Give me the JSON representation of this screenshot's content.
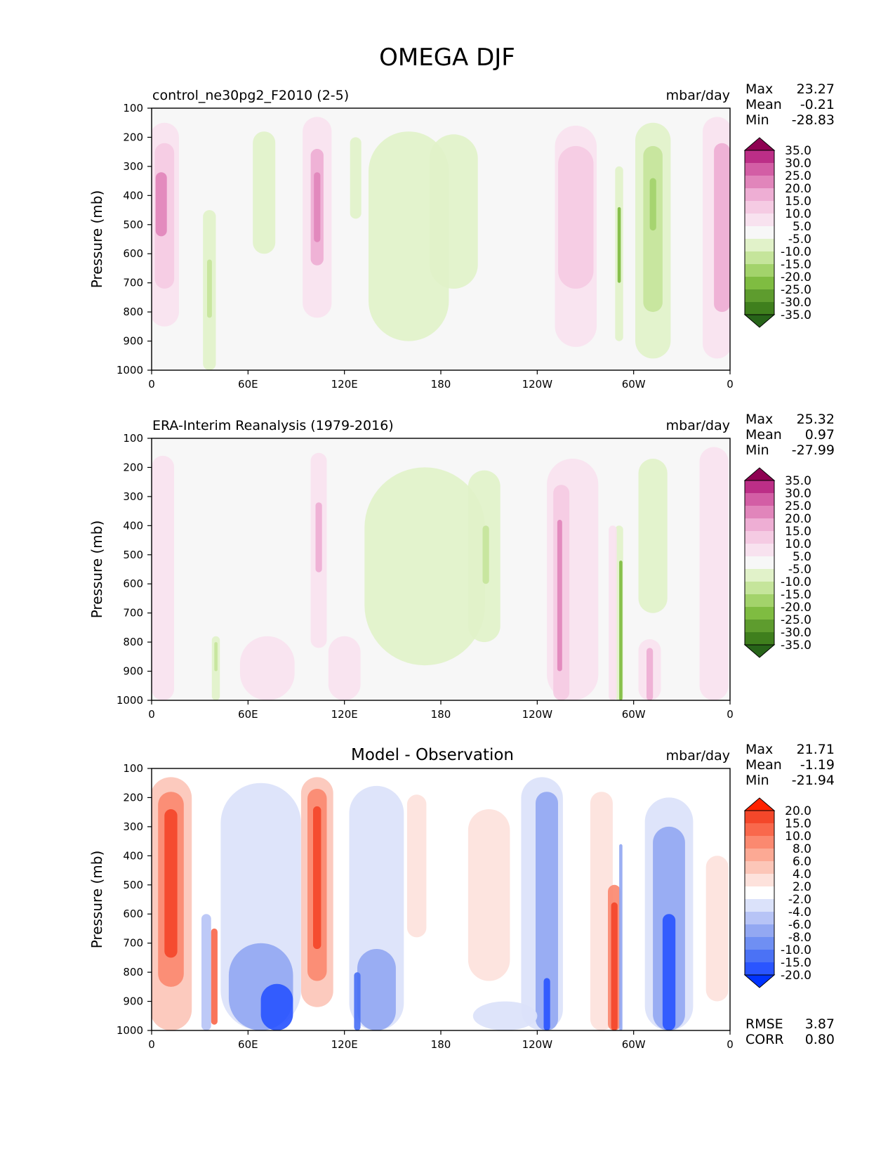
{
  "figure": {
    "title": "OMEGA DJF"
  },
  "colorbars": {
    "field": {
      "colors": [
        "#276419",
        "#3f7f1d",
        "#5e9c2e",
        "#7fbc41",
        "#a3d36b",
        "#c5e59b",
        "#e1f2c9",
        "#f7f7f7",
        "#f8e2ef",
        "#f5cbe3",
        "#eeaed4",
        "#e185bb",
        "#d35ea5",
        "#bc2e87",
        "#8e0152"
      ],
      "labels": [
        "35.0",
        "30.0",
        "25.0",
        "20.0",
        "15.0",
        "10.0",
        "5.0",
        "-5.0",
        "-10.0",
        "-15.0",
        "-20.0",
        "-25.0",
        "-30.0",
        "-35.0"
      ]
    },
    "diff": {
      "colors": [
        "#0033ff",
        "#2a55ff",
        "#4b72f5",
        "#6f8ff3",
        "#93a8f2",
        "#b7c4f6",
        "#dbe2fa",
        "#ffffff",
        "#fde2dc",
        "#fcc6b8",
        "#fca994",
        "#fb8970",
        "#f9684c",
        "#f4472a",
        "#ff2200"
      ],
      "labels": [
        "20.0",
        "15.0",
        "10.0",
        "8.0",
        "6.0",
        "4.0",
        "2.0",
        "-2.0",
        "-4.0",
        "-6.0",
        "-8.0",
        "-10.0",
        "-15.0",
        "-20.0"
      ]
    }
  },
  "chart_data": [
    {
      "type": "heatmap",
      "title": "control_ne30pg2_F2010 (2-5)",
      "units": "mbar/day",
      "ylabel": "Pressure (mb)",
      "y_ticks": [
        "100",
        "200",
        "300",
        "400",
        "500",
        "600",
        "700",
        "800",
        "900",
        "1000"
      ],
      "x_ticks": [
        "0",
        "60E",
        "120E",
        "180",
        "120W",
        "60W",
        "0"
      ],
      "ylim": [
        100,
        1000
      ],
      "xlim": [
        0,
        360
      ],
      "stats": {
        "Max": "23.27",
        "Mean": "-0.21",
        "Min": "-28.83"
      },
      "features": [
        {
          "lon": 8,
          "width": 18,
          "p_top": 150,
          "p_bot": 850,
          "value": 8
        },
        {
          "lon": 8,
          "width": 12,
          "p_top": 220,
          "p_bot": 720,
          "value": 14
        },
        {
          "lon": 6,
          "width": 7,
          "p_top": 320,
          "p_bot": 540,
          "value": 22
        },
        {
          "lon": 36,
          "width": 8,
          "p_top": 450,
          "p_bot": 1000,
          "value": -6
        },
        {
          "lon": 36,
          "width": 3,
          "p_top": 620,
          "p_bot": 820,
          "value": -12
        },
        {
          "lon": 70,
          "width": 14,
          "p_top": 180,
          "p_bot": 600,
          "value": -6
        },
        {
          "lon": 103,
          "width": 18,
          "p_top": 130,
          "p_bot": 820,
          "value": 7
        },
        {
          "lon": 103,
          "width": 8,
          "p_top": 240,
          "p_bot": 640,
          "value": 15
        },
        {
          "lon": 103,
          "width": 4,
          "p_top": 320,
          "p_bot": 560,
          "value": 22
        },
        {
          "lon": 127,
          "width": 7,
          "p_top": 200,
          "p_bot": 480,
          "value": -6
        },
        {
          "lon": 160,
          "width": 50,
          "p_top": 180,
          "p_bot": 900,
          "value": -6
        },
        {
          "lon": 188,
          "width": 30,
          "p_top": 190,
          "p_bot": 720,
          "value": -6
        },
        {
          "lon": 264,
          "width": 26,
          "p_top": 160,
          "p_bot": 920,
          "value": 7
        },
        {
          "lon": 264,
          "width": 22,
          "p_top": 230,
          "p_bot": 720,
          "value": 12
        },
        {
          "lon": 291,
          "width": 5,
          "p_top": 300,
          "p_bot": 900,
          "value": -7
        },
        {
          "lon": 291,
          "width": 2,
          "p_top": 440,
          "p_bot": 700,
          "value": -22
        },
        {
          "lon": 312,
          "width": 22,
          "p_top": 150,
          "p_bot": 960,
          "value": -7
        },
        {
          "lon": 312,
          "width": 12,
          "p_top": 230,
          "p_bot": 800,
          "value": -13
        },
        {
          "lon": 312,
          "width": 4,
          "p_top": 340,
          "p_bot": 520,
          "value": -20
        },
        {
          "lon": 352,
          "width": 18,
          "p_top": 130,
          "p_bot": 960,
          "value": 8
        },
        {
          "lon": 355,
          "width": 10,
          "p_top": 220,
          "p_bot": 800,
          "value": 16
        }
      ]
    },
    {
      "type": "heatmap",
      "title": "ERA-Interim Reanalysis (1979-2016)",
      "units": "mbar/day",
      "ylabel": "Pressure (mb)",
      "y_ticks": [
        "100",
        "200",
        "300",
        "400",
        "500",
        "600",
        "700",
        "800",
        "900",
        "1000"
      ],
      "x_ticks": [
        "0",
        "60E",
        "120E",
        "180",
        "120W",
        "60W",
        "0"
      ],
      "ylim": [
        100,
        1000
      ],
      "xlim": [
        0,
        360
      ],
      "stats": {
        "Max": "25.32",
        "Mean": "0.97",
        "Min": "-27.99"
      },
      "features": [
        {
          "lon": 7,
          "width": 14,
          "p_top": 160,
          "p_bot": 1000,
          "value": 7
        },
        {
          "lon": 40,
          "width": 5,
          "p_top": 780,
          "p_bot": 1000,
          "value": -6
        },
        {
          "lon": 40,
          "width": 2,
          "p_top": 800,
          "p_bot": 900,
          "value": -12
        },
        {
          "lon": 72,
          "width": 34,
          "p_top": 780,
          "p_bot": 1000,
          "value": 6
        },
        {
          "lon": 104,
          "width": 10,
          "p_top": 150,
          "p_bot": 820,
          "value": 7
        },
        {
          "lon": 104,
          "width": 4,
          "p_top": 320,
          "p_bot": 560,
          "value": 16
        },
        {
          "lon": 120,
          "width": 20,
          "p_top": 780,
          "p_bot": 1000,
          "value": 6
        },
        {
          "lon": 170,
          "width": 75,
          "p_top": 200,
          "p_bot": 880,
          "value": -6
        },
        {
          "lon": 207,
          "width": 20,
          "p_top": 210,
          "p_bot": 800,
          "value": -6
        },
        {
          "lon": 208,
          "width": 4,
          "p_top": 400,
          "p_bot": 600,
          "value": -12
        },
        {
          "lon": 262,
          "width": 32,
          "p_top": 170,
          "p_bot": 1000,
          "value": 7
        },
        {
          "lon": 255,
          "width": 10,
          "p_top": 260,
          "p_bot": 1000,
          "value": 12
        },
        {
          "lon": 254,
          "width": 3,
          "p_top": 380,
          "p_bot": 900,
          "value": 22
        },
        {
          "lon": 291,
          "width": 5,
          "p_top": 400,
          "p_bot": 1000,
          "value": -7
        },
        {
          "lon": 292,
          "width": 2,
          "p_top": 520,
          "p_bot": 1000,
          "value": -22
        },
        {
          "lon": 287,
          "width": 5,
          "p_top": 400,
          "p_bot": 1000,
          "value": 8
        },
        {
          "lon": 312,
          "width": 18,
          "p_top": 170,
          "p_bot": 700,
          "value": -6
        },
        {
          "lon": 310,
          "width": 14,
          "p_top": 790,
          "p_bot": 1000,
          "value": 8
        },
        {
          "lon": 310,
          "width": 4,
          "p_top": 820,
          "p_bot": 1000,
          "value": 16
        },
        {
          "lon": 350,
          "width": 18,
          "p_top": 130,
          "p_bot": 1000,
          "value": 7
        }
      ]
    },
    {
      "type": "heatmap",
      "title": "Model - Observation",
      "units": "mbar/day",
      "ylabel": "Pressure (mb)",
      "y_ticks": [
        "100",
        "200",
        "300",
        "400",
        "500",
        "600",
        "700",
        "800",
        "900",
        "1000"
      ],
      "x_ticks": [
        "0",
        "60E",
        "120E",
        "180",
        "120W",
        "60W",
        "0"
      ],
      "ylim": [
        100,
        1000
      ],
      "xlim": [
        0,
        360
      ],
      "stats": {
        "Max": "21.71",
        "Mean": "-1.19",
        "Min": "-21.94",
        "RMSE": "3.87",
        "CORR": "0.80"
      },
      "features": [
        {
          "lon": 12,
          "width": 26,
          "p_top": 130,
          "p_bot": 1000,
          "value": 4
        },
        {
          "lon": 12,
          "width": 16,
          "p_top": 180,
          "p_bot": 850,
          "value": 9
        },
        {
          "lon": 12,
          "width": 8,
          "p_top": 240,
          "p_bot": 750,
          "value": 15
        },
        {
          "lon": 39,
          "width": 4,
          "p_top": 650,
          "p_bot": 980,
          "value": 12
        },
        {
          "lon": 34,
          "width": 6,
          "p_top": 600,
          "p_bot": 1000,
          "value": -6
        },
        {
          "lon": 68,
          "width": 50,
          "p_top": 150,
          "p_bot": 1000,
          "value": -3
        },
        {
          "lon": 68,
          "width": 40,
          "p_top": 700,
          "p_bot": 1000,
          "value": -7
        },
        {
          "lon": 78,
          "width": 20,
          "p_top": 840,
          "p_bot": 1000,
          "value": -16
        },
        {
          "lon": 103,
          "width": 20,
          "p_top": 130,
          "p_bot": 920,
          "value": 4
        },
        {
          "lon": 103,
          "width": 12,
          "p_top": 170,
          "p_bot": 830,
          "value": 9
        },
        {
          "lon": 103,
          "width": 5,
          "p_top": 230,
          "p_bot": 720,
          "value": 15
        },
        {
          "lon": 140,
          "width": 34,
          "p_top": 160,
          "p_bot": 1000,
          "value": -3
        },
        {
          "lon": 140,
          "width": 24,
          "p_top": 720,
          "p_bot": 1000,
          "value": -7
        },
        {
          "lon": 128,
          "width": 4,
          "p_top": 800,
          "p_bot": 1000,
          "value": -13
        },
        {
          "lon": 165,
          "width": 12,
          "p_top": 190,
          "p_bot": 680,
          "value": 3
        },
        {
          "lon": 210,
          "width": 26,
          "p_top": 240,
          "p_bot": 830,
          "value": 3
        },
        {
          "lon": 243,
          "width": 26,
          "p_top": 130,
          "p_bot": 1000,
          "value": -3
        },
        {
          "lon": 246,
          "width": 14,
          "p_top": 180,
          "p_bot": 1000,
          "value": -7
        },
        {
          "lon": 246,
          "width": 4,
          "p_top": 820,
          "p_bot": 1000,
          "value": -16
        },
        {
          "lon": 220,
          "width": 40,
          "p_top": 900,
          "p_bot": 1000,
          "value": -3
        },
        {
          "lon": 280,
          "width": 14,
          "p_top": 180,
          "p_bot": 1000,
          "value": 3
        },
        {
          "lon": 288,
          "width": 8,
          "p_top": 500,
          "p_bot": 1000,
          "value": 9
        },
        {
          "lon": 288,
          "width": 4,
          "p_top": 560,
          "p_bot": 1000,
          "value": 18
        },
        {
          "lon": 292,
          "width": 2,
          "p_top": 360,
          "p_bot": 1000,
          "value": -7
        },
        {
          "lon": 322,
          "width": 30,
          "p_top": 200,
          "p_bot": 1000,
          "value": -3
        },
        {
          "lon": 322,
          "width": 20,
          "p_top": 300,
          "p_bot": 1000,
          "value": -7
        },
        {
          "lon": 322,
          "width": 8,
          "p_top": 600,
          "p_bot": 1000,
          "value": -16
        },
        {
          "lon": 352,
          "width": 14,
          "p_top": 400,
          "p_bot": 900,
          "value": 3
        }
      ]
    }
  ]
}
